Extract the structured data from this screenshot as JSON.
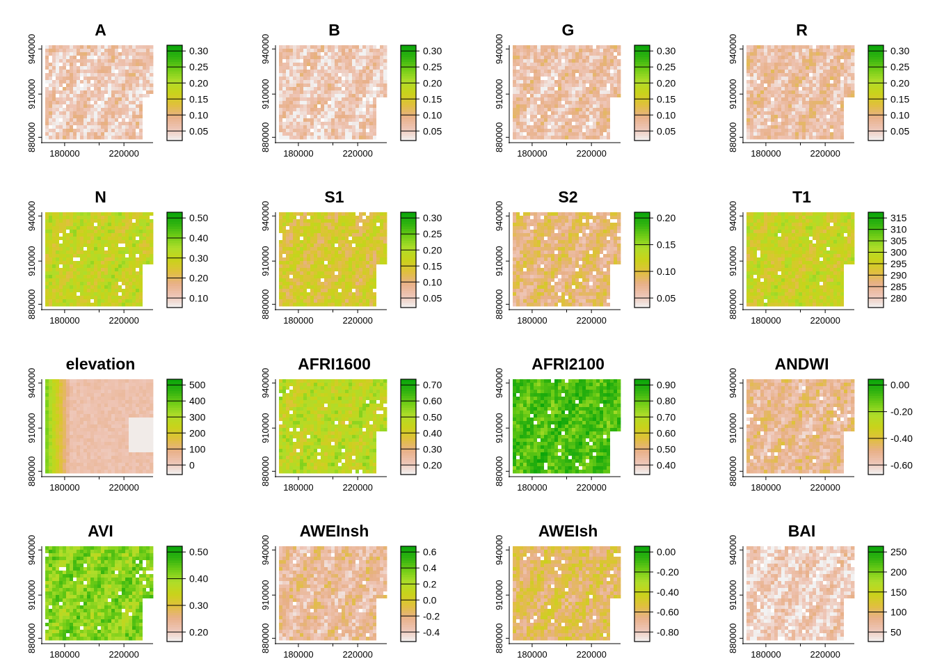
{
  "chart_data": {
    "type": "heatmap",
    "x_ticks": [
      "180000",
      "220000"
    ],
    "y_ticks": [
      "880000",
      "910000",
      "940000"
    ],
    "palette": [
      "#f2f2f2",
      "#eec4b4",
      "#e8b088",
      "#e0c03c",
      "#c9d31a",
      "#aedd2a",
      "#6fcc16",
      "#2fb20f",
      "#09a50a"
    ],
    "panels": [
      {
        "title": "A",
        "legend": [
          "0.05",
          "0.10",
          "0.15",
          "0.20",
          "0.25",
          "0.30"
        ],
        "level": 0.12
      },
      {
        "title": "B",
        "legend": [
          "0.05",
          "0.10",
          "0.15",
          "0.20",
          "0.25",
          "0.30"
        ],
        "level": 0.12
      },
      {
        "title": "G",
        "legend": [
          "0.05",
          "0.10",
          "0.15",
          "0.20",
          "0.25",
          "0.30"
        ],
        "level": 0.16
      },
      {
        "title": "R",
        "legend": [
          "0.05",
          "0.10",
          "0.15",
          "0.20",
          "0.25",
          "0.30"
        ],
        "level": 0.17
      },
      {
        "title": "N",
        "legend": [
          "0.10",
          "0.20",
          "0.30",
          "0.40",
          "0.50"
        ],
        "level": 0.52
      },
      {
        "title": "S1",
        "legend": [
          "0.05",
          "0.10",
          "0.15",
          "0.20",
          "0.25",
          "0.30"
        ],
        "level": 0.42
      },
      {
        "title": "S2",
        "legend": [
          "0.05",
          "0.10",
          "0.15",
          "0.20"
        ],
        "level": 0.28
      },
      {
        "title": "T1",
        "legend": [
          "280",
          "285",
          "290",
          "295",
          "300",
          "305",
          "310",
          "315"
        ],
        "level": 0.5
      },
      {
        "title": "elevation",
        "legend": [
          "0",
          "100",
          "200",
          "300",
          "400",
          "500"
        ],
        "level": 0.15,
        "gradient": true
      },
      {
        "title": "AFRI1600",
        "legend": [
          "0.20",
          "0.30",
          "0.40",
          "0.50",
          "0.60",
          "0.70"
        ],
        "level": 0.55
      },
      {
        "title": "AFRI2100",
        "legend": [
          "0.40",
          "0.50",
          "0.60",
          "0.70",
          "0.80",
          "0.90"
        ],
        "level": 0.82
      },
      {
        "title": "ANDWI",
        "legend": [
          "-0.60",
          "-0.40",
          "-0.20",
          "0.00"
        ],
        "level": 0.22
      },
      {
        "title": "AVI",
        "legend": [
          "0.20",
          "0.30",
          "0.40",
          "0.50"
        ],
        "level": 0.7
      },
      {
        "title": "AWEInsh",
        "legend": [
          "-0.4",
          "-0.2",
          "0.0",
          "0.2",
          "0.4",
          "0.6"
        ],
        "level": 0.2
      },
      {
        "title": "AWEIsh",
        "legend": [
          "-0.80",
          "-0.60",
          "-0.40",
          "-0.20",
          "0.00"
        ],
        "level": 0.32
      },
      {
        "title": "BAI",
        "legend": [
          "50",
          "100",
          "150",
          "200",
          "250"
        ],
        "level": 0.1
      }
    ]
  }
}
